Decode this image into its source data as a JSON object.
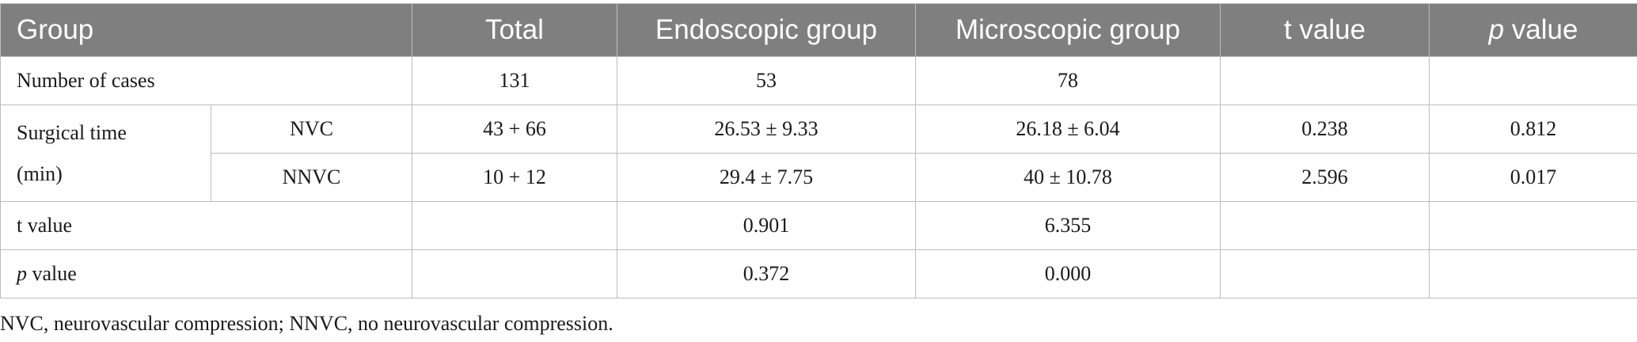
{
  "table": {
    "headers": {
      "group": "Group",
      "total": "Total",
      "endoscopic": "Endoscopic group",
      "microscopic": "Microscopic group",
      "t_value_italic": "",
      "t_value": "t value",
      "p_value_italic": "p",
      "p_value": " value"
    },
    "rows": {
      "cases": {
        "label": "Number of cases",
        "total": "131",
        "endo": "53",
        "micro": "78",
        "t": "",
        "p": ""
      },
      "surgical_time": {
        "label_line1": "Surgical time",
        "label_line2": "(min)",
        "nvc": {
          "sub": "NVC",
          "total": "43 + 66",
          "endo": "26.53 ± 9.33",
          "micro": "26.18 ± 6.04",
          "t": "0.238",
          "p": "0.812"
        },
        "nnvc": {
          "sub": "NNVC",
          "total": "10 + 12",
          "endo": "29.4 ± 7.75",
          "micro": "40 ± 10.78",
          "t": "2.596",
          "p": "0.017"
        }
      },
      "tval": {
        "label": "t value",
        "total": "",
        "endo": "0.901",
        "micro": "6.355",
        "t": "",
        "p": ""
      },
      "pval": {
        "label_italic": "p",
        "label": " value",
        "total": "",
        "endo": "0.372",
        "micro": "0.000",
        "t": "",
        "p": ""
      }
    }
  },
  "footnote": "NVC, neurovascular compression; NNVC, no neurovascular compression."
}
